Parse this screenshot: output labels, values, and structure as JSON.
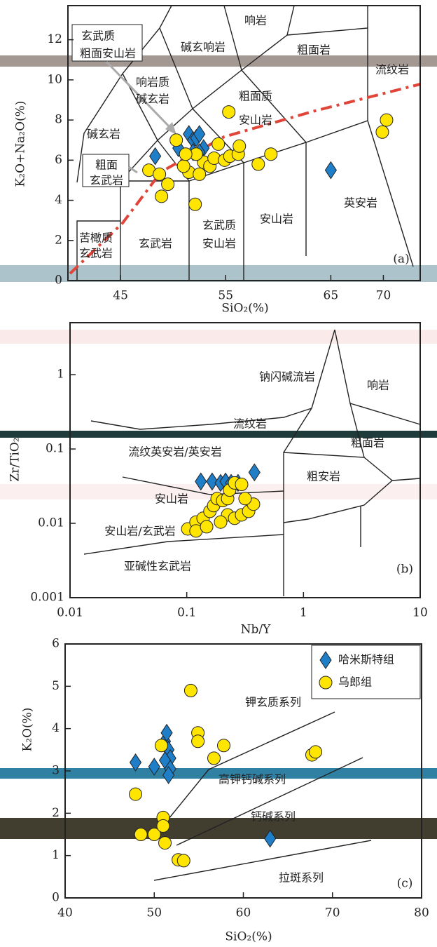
{
  "chart_data": [
    {
      "type": "scatter",
      "xlabel": "SiO₂(%)",
      "ylabel": "K₂O+Na₂O(%)",
      "xlim": [
        40,
        73.5
      ],
      "ylim": [
        0,
        13.7
      ],
      "xticks": [
        45,
        55,
        65,
        70
      ],
      "yticks": [
        0,
        2,
        4,
        6,
        8,
        10,
        12
      ],
      "field_labels": [
        "响岩",
        "碱玄响岩",
        "粗面岩",
        "流纹岩",
        "响岩质",
        "碱玄岩",
        "粗面质",
        "安山岩",
        "碱玄岩",
        "粗面",
        "玄武岩",
        "苦橄质",
        "玄武岩",
        "玄武岩",
        "玄武质",
        "安山岩",
        "安山岩",
        "英安岩",
        "玄武质",
        "粗面安山岩"
      ],
      "panel_label": "(a)",
      "series": [
        {
          "marker": "diamond",
          "color": "#1f7ec8",
          "x": [
            48.3,
            50.5,
            51.5,
            51.9,
            52.2,
            52.5,
            52.9,
            51.9,
            52.5,
            65
          ],
          "values": [
            6.2,
            6.6,
            7.3,
            7.0,
            7.1,
            7.3,
            6.6,
            6.4,
            6.4,
            5.5
          ]
        },
        {
          "marker": "circle",
          "color": "#ffe500",
          "x": [
            50.3,
            47.7,
            48.7,
            49.5,
            48.9,
            51.5,
            51,
            52.5,
            52.1,
            52.9,
            53.5,
            53.9,
            54.3,
            54.9,
            55.4,
            56.2,
            56.3,
            55.3,
            58.1,
            59.3,
            69.9,
            70.3,
            52.2,
            51.2
          ],
          "values": [
            7.0,
            5.5,
            5.3,
            4.8,
            4.2,
            5.4,
            5.7,
            5.3,
            3.8,
            5.9,
            5.7,
            6.1,
            6.8,
            6.0,
            6.2,
            6.3,
            6.7,
            8.4,
            5.8,
            6.3,
            7.4,
            8.0,
            6.3,
            6.3
          ]
        }
      ]
    },
    {
      "type": "scatter",
      "xlabel": "Nb/Y",
      "ylabel": "Zr/TiO₂",
      "xscale": "log",
      "yscale": "log",
      "xlim": [
        0.01,
        10
      ],
      "ylim": [
        0.001,
        5
      ],
      "xticks": [
        0.01,
        0.1,
        1,
        10
      ],
      "yticks": [
        0.001,
        0.01,
        0.1,
        1
      ],
      "field_labels": [
        "钠闪碱流岩",
        "响岩",
        "流纹岩",
        "粗面岩",
        "流纹英安岩/英安岩",
        "粗安岩",
        "安山岩",
        "安山岩/玄武岩",
        "亚碱性玄武岩"
      ],
      "panel_label": "(b)",
      "series": [
        {
          "marker": "diamond",
          "color": "#1f7ec8",
          "x": [
            0.132,
            0.165,
            0.195,
            0.215,
            0.24,
            0.275,
            0.233,
            0.38
          ],
          "values": [
            0.0365,
            0.0365,
            0.035,
            0.0365,
            0.035,
            0.035,
            0.028,
            0.0485
          ]
        },
        {
          "marker": "circle",
          "color": "#ffe500",
          "x": [
            0.102,
            0.12,
            0.138,
            0.158,
            0.17,
            0.182,
            0.203,
            0.224,
            0.233,
            0.257,
            0.295,
            0.224,
            0.257,
            0.295,
            0.339,
            0.373,
            0.316,
            0.12,
            0.148,
            0.195
          ],
          "values": [
            0.0084,
            0.0104,
            0.0117,
            0.0145,
            0.0173,
            0.0215,
            0.0202,
            0.0215,
            0.028,
            0.035,
            0.0334,
            0.013,
            0.0117,
            0.013,
            0.0145,
            0.0181,
            0.0215,
            0.0079,
            0.009,
            0.0104
          ]
        }
      ]
    },
    {
      "type": "scatter",
      "xlabel": "SiO₂(%)",
      "ylabel": "K₂O(%)",
      "xlim": [
        40,
        80
      ],
      "ylim": [
        0,
        6
      ],
      "xticks": [
        40,
        50,
        60,
        70,
        80
      ],
      "yticks": [
        0,
        1,
        2,
        3,
        4,
        5,
        6
      ],
      "field_labels": [
        "钾玄质系列",
        "高钾钙碱系列",
        "钙碱系列",
        "拉斑系列"
      ],
      "panel_label": "(c)",
      "series": [
        {
          "name": "哈米斯特组",
          "marker": "diamond",
          "color": "#1f7ec8",
          "x": [
            47.9,
            50,
            51.2,
            51.4,
            51.6,
            51.8,
            51.2,
            51.8,
            51.6,
            63
          ],
          "values": [
            3.2,
            3.1,
            3.7,
            3.9,
            3.5,
            3.3,
            3.25,
            3.05,
            2.9,
            1.4
          ]
        },
        {
          "name": "乌郎组",
          "marker": "circle",
          "color": "#ffe500",
          "x": [
            54.1,
            54.9,
            54.9,
            57.8,
            56.7,
            50.8,
            47.9,
            51,
            51.2,
            50,
            52.7,
            53.3,
            67.7,
            68.1,
            51,
            48.5
          ],
          "values": [
            4.9,
            3.9,
            3.7,
            3.6,
            3.3,
            3.6,
            2.45,
            1.9,
            1.3,
            1.5,
            0.9,
            0.88,
            3.38,
            3.45,
            1.7,
            1.5
          ]
        }
      ]
    }
  ]
}
